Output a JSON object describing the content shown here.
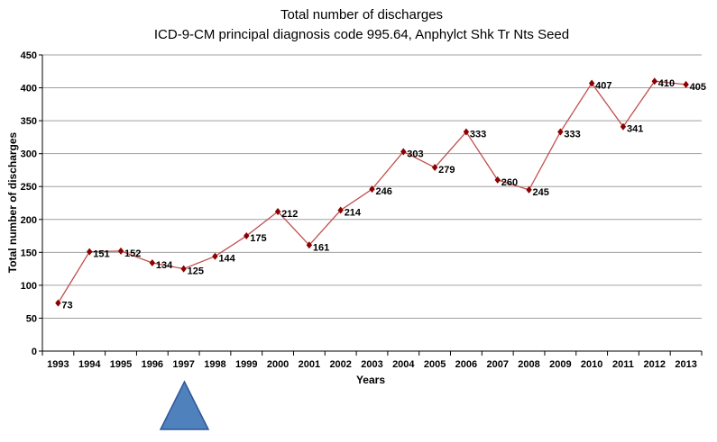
{
  "chart_data": {
    "type": "line",
    "title": "Total number of discharges",
    "subtitle": "ICD-9-CM principal diagnosis code 995.64, Anphylct Shk Tr Nts Seed",
    "xlabel": "Years",
    "ylabel": "Total number of discharges",
    "ylim": [
      0,
      450
    ],
    "yticks": [
      0,
      50,
      100,
      150,
      200,
      250,
      300,
      350,
      400,
      450
    ],
    "grid": true,
    "legend": "none",
    "categories": [
      "1993",
      "1994",
      "1995",
      "1996",
      "1997",
      "1998",
      "1999",
      "2000",
      "2001",
      "2002",
      "2003",
      "2004",
      "2005",
      "2006",
      "2007",
      "2008",
      "2009",
      "2010",
      "2011",
      "2012",
      "2013"
    ],
    "series": [
      {
        "name": "Total number of discharges",
        "color": "#a52a2a",
        "values": [
          73,
          151,
          152,
          134,
          125,
          144,
          175,
          212,
          161,
          214,
          246,
          303,
          279,
          333,
          260,
          245,
          333,
          407,
          341,
          410,
          405
        ]
      }
    ]
  },
  "colors": {
    "line": "#c0504d",
    "marker": "#8b0000",
    "grid": "#a0a0a0",
    "triangle": "#4f81bd"
  },
  "annotation_icon": "triangle-marker-icon"
}
